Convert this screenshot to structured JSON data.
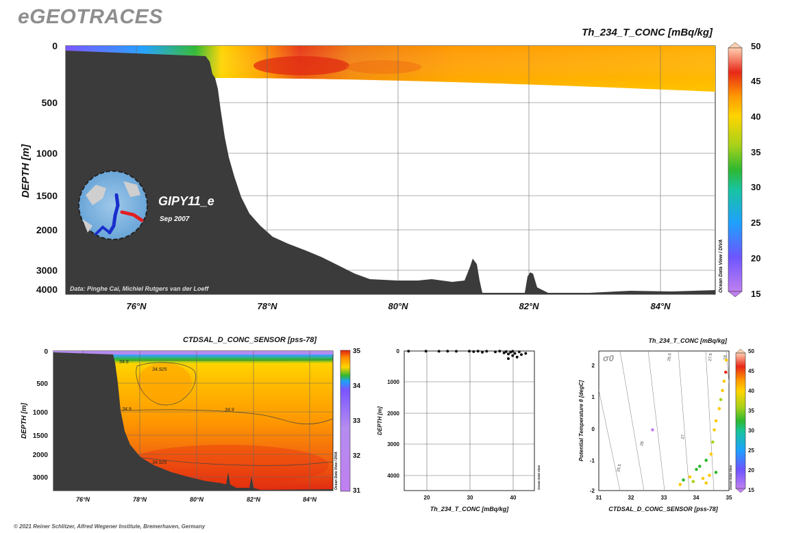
{
  "header": {
    "title": "eGEOTRACES"
  },
  "footer": {
    "copyright": "© 2021 Reiner Schlitzer, Alfred Wegener Institute, Bremerhaven, Germany"
  },
  "colors": {
    "terrain": "#3b3b3b",
    "background": "#ffffff",
    "station_track": "#1a2ecc",
    "track_highlight": "#e02020"
  },
  "main_section": {
    "variable_label": "Th_234_T_CONC [mBq/kg]",
    "ylabel": "DEPTH [m]",
    "y_ticks": [
      "0",
      "500",
      "1000",
      "1500",
      "2000",
      "3000",
      "4000"
    ],
    "x_ticks": [
      "76°N",
      "78°N",
      "80°N",
      "82°N",
      "84°N"
    ],
    "cruise_name": "GIPY11_e",
    "cruise_date": "Sep 2007",
    "data_credit": "Data: Pinghe Cai, Michiel Rutgers van der Loeff",
    "software_label": "Ocean Data View / DIVA",
    "colorbar_ticks": [
      "50",
      "45",
      "40",
      "35",
      "30",
      "25",
      "20",
      "15"
    ]
  },
  "salinity_section": {
    "variable_label": "CTDSAL_D_CONC_SENSOR [pss-78]",
    "ylabel": "DEPTH [m]",
    "y_ticks": [
      "0",
      "500",
      "1000",
      "1500",
      "2000",
      "3000"
    ],
    "x_ticks": [
      "76°N",
      "78°N",
      "80°N",
      "82°N",
      "84°N"
    ],
    "contour_labels": [
      "34.925",
      "34.9",
      "34.9",
      "34.925",
      "34.6"
    ],
    "software_label": "Ocean Data View / DIVA",
    "colorbar_ticks": [
      "35",
      "34",
      "33",
      "32",
      "31"
    ]
  },
  "profile_plot": {
    "xlabel": "Th_234_T_CONC [mBq/kg]",
    "ylabel": "DEPTH [m]",
    "x_ticks": [
      "20",
      "30",
      "40"
    ],
    "y_ticks": [
      "0",
      "1000",
      "2000",
      "3000",
      "4000"
    ],
    "software_label": "Ocean Data View"
  },
  "ts_plot": {
    "variable_label": "Th_234_T_CONC [mBq/kg]",
    "xlabel": "CTDSAL_D_CONC_SENSOR [pss-78]",
    "ylabel": "Potential Temperature θ [degC]",
    "sigma_label": "σ0",
    "x_ticks": [
      "31",
      "32",
      "33",
      "34",
      "35"
    ],
    "y_ticks": [
      "2",
      "1",
      "0",
      "-1",
      "-2"
    ],
    "isopycnal_labels": [
      "25.5",
      "26",
      "26.5",
      "27",
      "27.5",
      "28"
    ],
    "software_label": "Ocean Data View",
    "colorbar_ticks": [
      "50",
      "45",
      "40",
      "35",
      "30",
      "25",
      "20",
      "15"
    ]
  },
  "chart_data": [
    {
      "type": "heatmap",
      "variable": "Th_234_T_CONC",
      "unit": "mBq/kg",
      "xlabel": "",
      "ylabel": "DEPTH [m]",
      "xlim": [
        75,
        85
      ],
      "ylim": [
        4000,
        0
      ],
      "color_range": [
        15,
        50
      ],
      "x_ticks": [
        76,
        78,
        80,
        82,
        84
      ],
      "y_ticks": [
        0,
        500,
        1000,
        1500,
        2000,
        3000,
        4000
      ],
      "bathymetry": [
        {
          "lat": 75.0,
          "depth": 4000
        },
        {
          "lat": 77.0,
          "depth": 100
        },
        {
          "lat": 77.2,
          "depth": 250
        },
        {
          "lat": 77.5,
          "depth": 800
        },
        {
          "lat": 78.0,
          "depth": 1800
        },
        {
          "lat": 79.0,
          "depth": 2700
        },
        {
          "lat": 80.0,
          "depth": 3500
        },
        {
          "lat": 81.0,
          "depth": 3700
        },
        {
          "lat": 81.1,
          "depth": 2700
        },
        {
          "lat": 81.3,
          "depth": 4050
        },
        {
          "lat": 81.9,
          "depth": 4050
        },
        {
          "lat": 82.0,
          "depth": 3100
        },
        {
          "lat": 82.2,
          "depth": 4000
        },
        {
          "lat": 85.0,
          "depth": 4000
        }
      ],
      "surface_field": [
        {
          "lat": 75.0,
          "value": 18
        },
        {
          "lat": 76.5,
          "value": 25
        },
        {
          "lat": 77.0,
          "value": 33
        },
        {
          "lat": 77.5,
          "value": 38
        },
        {
          "lat": 78.2,
          "value": 45
        },
        {
          "lat": 79.5,
          "value": 41
        },
        {
          "lat": 81.5,
          "value": 40
        },
        {
          "lat": 84.0,
          "value": 40
        },
        {
          "lat": 85.0,
          "value": 39
        }
      ]
    },
    {
      "type": "heatmap",
      "variable": "CTDSAL_D_CONC_SENSOR",
      "unit": "pss-78",
      "xlabel": "",
      "ylabel": "DEPTH [m]",
      "xlim": [
        75,
        85
      ],
      "ylim": [
        3500,
        0
      ],
      "color_range": [
        31,
        35
      ],
      "x_ticks": [
        76,
        78,
        80,
        82,
        84
      ],
      "y_ticks": [
        0,
        500,
        1000,
        1500,
        2000,
        3000
      ],
      "contours": [
        34.6,
        34.9,
        34.925
      ]
    },
    {
      "type": "scatter",
      "xlabel": "Th_234_T_CONC [mBq/kg]",
      "ylabel": "DEPTH [m]",
      "xlim": [
        15,
        45
      ],
      "ylim": [
        4600,
        0
      ],
      "x_ticks": [
        20,
        30,
        40
      ],
      "y_ticks": [
        0,
        1000,
        2000,
        3000,
        4000
      ],
      "points": [
        {
          "x": 16,
          "y": 5
        },
        {
          "x": 20,
          "y": 5
        },
        {
          "x": 23,
          "y": 10
        },
        {
          "x": 25,
          "y": 5
        },
        {
          "x": 27,
          "y": 10
        },
        {
          "x": 30,
          "y": 5
        },
        {
          "x": 31,
          "y": 20
        },
        {
          "x": 32,
          "y": 5
        },
        {
          "x": 33,
          "y": 40
        },
        {
          "x": 34,
          "y": 10
        },
        {
          "x": 36,
          "y": 30
        },
        {
          "x": 37,
          "y": 5
        },
        {
          "x": 38,
          "y": 60
        },
        {
          "x": 38.5,
          "y": 20
        },
        {
          "x": 39,
          "y": 100
        },
        {
          "x": 39.5,
          "y": 40
        },
        {
          "x": 40,
          "y": 150
        },
        {
          "x": 40.5,
          "y": 80
        },
        {
          "x": 41,
          "y": 200
        },
        {
          "x": 41.5,
          "y": 30
        },
        {
          "x": 42,
          "y": 120
        },
        {
          "x": 43,
          "y": 80
        },
        {
          "x": 40,
          "y": 10
        },
        {
          "x": 39,
          "y": 250
        }
      ]
    },
    {
      "type": "scatter",
      "xlabel": "CTDSAL_D_CONC_SENSOR [pss-78]",
      "ylabel": "Potential Temperature θ [degC]",
      "xlim": [
        31,
        35
      ],
      "ylim": [
        -2,
        2.6
      ],
      "color_range": [
        15,
        50
      ],
      "x_ticks": [
        31,
        32,
        33,
        34,
        35
      ],
      "y_ticks": [
        -2,
        -1,
        0,
        1,
        2
      ],
      "isopycnals": [
        25.5,
        26,
        26.5,
        27,
        27.5,
        28
      ],
      "points": [
        {
          "x": 32.65,
          "y": 0.0,
          "value": 18
        },
        {
          "x": 33.6,
          "y": -1.65,
          "value": 33
        },
        {
          "x": 33.8,
          "y": -1.55,
          "value": 40
        },
        {
          "x": 33.9,
          "y": -1.7,
          "value": 38
        },
        {
          "x": 34.0,
          "y": -1.3,
          "value": 30
        },
        {
          "x": 34.1,
          "y": -1.2,
          "value": 34
        },
        {
          "x": 34.2,
          "y": -1.6,
          "value": 40
        },
        {
          "x": 34.3,
          "y": -1.0,
          "value": 32
        },
        {
          "x": 34.4,
          "y": -1.5,
          "value": 41
        },
        {
          "x": 34.45,
          "y": -0.8,
          "value": 42
        },
        {
          "x": 34.5,
          "y": -0.4,
          "value": 39
        },
        {
          "x": 34.55,
          "y": 0.0,
          "value": 40
        },
        {
          "x": 34.6,
          "y": 0.3,
          "value": 41
        },
        {
          "x": 34.7,
          "y": 0.7,
          "value": 40
        },
        {
          "x": 34.75,
          "y": 1.0,
          "value": 39
        },
        {
          "x": 34.8,
          "y": 1.3,
          "value": 41
        },
        {
          "x": 34.85,
          "y": 1.6,
          "value": 40
        },
        {
          "x": 34.9,
          "y": 1.9,
          "value": 47
        },
        {
          "x": 34.92,
          "y": 2.3,
          "value": 42
        },
        {
          "x": 34.3,
          "y": -1.75,
          "value": 42
        },
        {
          "x": 33.5,
          "y": -1.8,
          "value": 41
        },
        {
          "x": 34.6,
          "y": -1.4,
          "value": 32
        }
      ]
    }
  ]
}
